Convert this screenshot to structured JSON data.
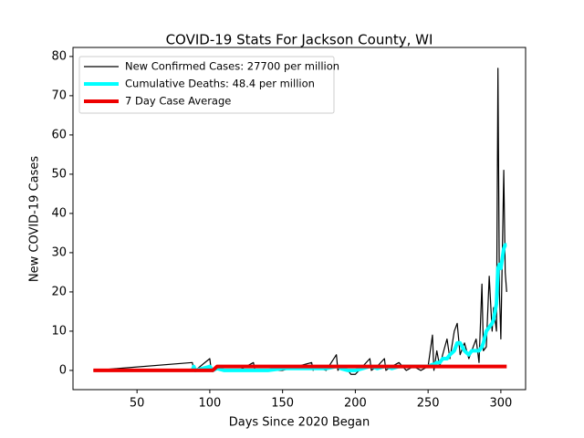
{
  "chart_data": {
    "type": "line",
    "title": "COVID-19 Stats For Jackson County, WI",
    "x_label": "Days Since 2020 Began",
    "y_label": "New COVID-19 Cases",
    "x": [
      20,
      88,
      89,
      90,
      100,
      101,
      102,
      105,
      110,
      120,
      130,
      131,
      132,
      140,
      150,
      160,
      170,
      171,
      172,
      180,
      187,
      188,
      190,
      195,
      197,
      200,
      205,
      210,
      211,
      215,
      220,
      221,
      225,
      230,
      235,
      240,
      245,
      250,
      253,
      254,
      256,
      258,
      260,
      263,
      265,
      268,
      270,
      272,
      275,
      278,
      280,
      283,
      285,
      287,
      288,
      290,
      292,
      294,
      295,
      297,
      298,
      299,
      300,
      302,
      303,
      304
    ],
    "series": [
      {
        "name": "New Confirmed Cases: 27700 per million",
        "color": "#000000",
        "width": 1.2,
        "values": [
          0,
          2,
          0,
          0,
          3,
          0,
          0,
          1,
          0,
          0,
          2,
          0,
          0,
          0,
          0,
          1,
          2,
          0,
          1,
          0,
          4,
          0,
          1,
          0,
          -1,
          -1,
          1,
          3,
          0,
          1,
          3,
          0,
          1,
          2,
          0,
          1,
          0,
          1,
          9,
          0,
          5,
          1,
          4,
          8,
          3,
          10,
          12,
          4,
          7,
          3,
          5,
          8,
          2,
          22,
          5,
          6,
          24,
          10,
          16,
          10,
          77,
          20,
          8,
          51,
          25,
          20
        ]
      },
      {
        "name": "Cumulative Deaths: 48.4 per million",
        "color": "#00ffff",
        "width": 4,
        "values": [
          null,
          0,
          1,
          0,
          1,
          0.5,
          0,
          0.5,
          0,
          0,
          0,
          0,
          0,
          0,
          0.5,
          0.5,
          0.5,
          0.5,
          0.5,
          0.5,
          1,
          1,
          0.5,
          0,
          0,
          0,
          0.5,
          1,
          1,
          0.5,
          1,
          1,
          0.5,
          1,
          1,
          1,
          1,
          1,
          1.5,
          1.5,
          2,
          2,
          3,
          3,
          4,
          5,
          7,
          7,
          5,
          4,
          5,
          5,
          5,
          6,
          7,
          10,
          11,
          12,
          13,
          17,
          26,
          27,
          26,
          31,
          32,
          32
        ]
      },
      {
        "name": "7 Day Case Average",
        "color": "#ee0000",
        "width": 4,
        "values": [
          0,
          0,
          0,
          0,
          0,
          0,
          0,
          1,
          1,
          1,
          1,
          1,
          1,
          1,
          1,
          1,
          1,
          1,
          1,
          1,
          1,
          1,
          1,
          1,
          1,
          1,
          1,
          1,
          1,
          1,
          1,
          1,
          1,
          1,
          1,
          1,
          1,
          1,
          1,
          1,
          1,
          1,
          1,
          1,
          1,
          1,
          1,
          1,
          1,
          1,
          1,
          1,
          1,
          1,
          1,
          1,
          1,
          1,
          1,
          1,
          1,
          1,
          1,
          1,
          1,
          1
        ]
      }
    ],
    "xlim": [
      6,
      317
    ],
    "ylim": [
      -4.9,
      82.3
    ],
    "xticks": [
      50,
      100,
      150,
      200,
      250,
      300
    ],
    "yticks": [
      0,
      10,
      20,
      30,
      40,
      50,
      60,
      70,
      80
    ],
    "legend": "upper left"
  }
}
